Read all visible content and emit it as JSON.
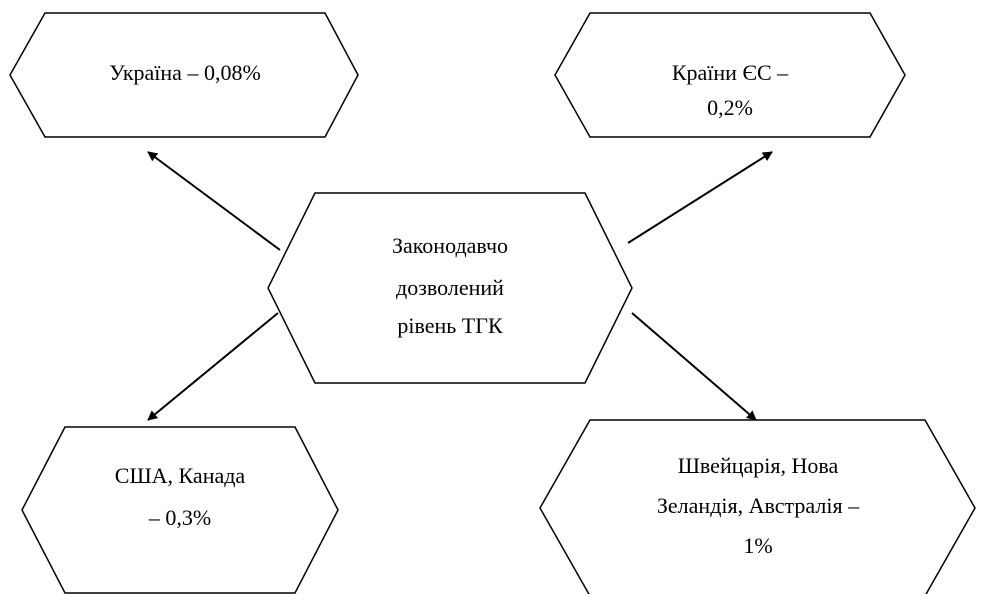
{
  "nodes": [
    {
      "lines": [
        "Законодавчо",
        "дозволений",
        "рівень ТГК"
      ]
    },
    {
      "lines": [
        "Україна – 0,08%"
      ]
    },
    {
      "lines": [
        "Країни ЄС –",
        "0,2%"
      ]
    },
    {
      "lines": [
        "США, Канада",
        "– 0,3%"
      ]
    },
    {
      "lines": [
        "Швейцарія, Нова",
        "Зеландія, Австралія –",
        "1%"
      ]
    }
  ]
}
